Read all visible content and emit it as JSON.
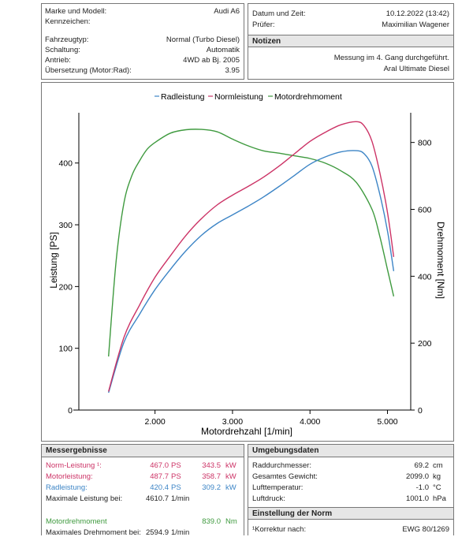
{
  "vehicle": {
    "rows": [
      {
        "label": "Marke und Modell:",
        "value": "Audi A6"
      },
      {
        "label": "Kennzeichen:",
        "value": ""
      },
      {
        "label": "Fahrzeugtyp:",
        "value": "Normal (Turbo Diesel)"
      },
      {
        "label": "Schaltung:",
        "value": "Automatik"
      },
      {
        "label": "Antrieb:",
        "value": "4WD ab Bj. 2005"
      },
      {
        "label": "Übersetzung (Motor:Rad):",
        "value": "3.95"
      }
    ]
  },
  "session": {
    "date_label": "Datum und Zeit:",
    "date_value": "10.12.2022 (13:42)",
    "tester_label": "Prüfer:",
    "tester_value": "Maximilian Wagener"
  },
  "notes": {
    "header": "Notizen",
    "line1": "Messung im 4. Gang durchgeführt.",
    "line2": "Aral Ultimate Diesel"
  },
  "colors": {
    "radleistung": "#3d85c6",
    "normleistung": "#cc3366",
    "motordrehmoment": "#3f9a3f"
  },
  "chart_data": {
    "type": "line",
    "legend_position": "top",
    "xlabel": "Motordrehzahl [1/min]",
    "ylabel": "Leistung [PS]",
    "y2label": "Drehmoment [Nm]",
    "xlim": [
      1200,
      5300
    ],
    "ylim": [
      0,
      475
    ],
    "y2lim": [
      0,
      877
    ],
    "xticks": [
      2000,
      3000,
      4000,
      5000
    ],
    "xtick_labels": [
      "2.000",
      "3.000",
      "4.000",
      "5.000"
    ],
    "yticks": [
      0,
      100,
      200,
      300,
      400
    ],
    "y2ticks": [
      0,
      200,
      400,
      600,
      800
    ],
    "grid": false,
    "series": [
      {
        "name": "Radleistung",
        "axis": "left",
        "x": [
          1400,
          1600,
          1800,
          2000,
          2200,
          2400,
          2600,
          2800,
          3000,
          3200,
          3400,
          3600,
          3800,
          4000,
          4200,
          4400,
          4600,
          4700,
          4800,
          4900,
          5000,
          5080
        ],
        "y": [
          28,
          110,
          155,
          195,
          228,
          258,
          283,
          302,
          316,
          330,
          345,
          362,
          380,
          398,
          410,
          418,
          420,
          415,
          395,
          350,
          290,
          225
        ]
      },
      {
        "name": "Normleistung",
        "axis": "left",
        "x": [
          1400,
          1600,
          1800,
          2000,
          2200,
          2400,
          2600,
          2800,
          3000,
          3200,
          3400,
          3600,
          3800,
          4000,
          4200,
          4400,
          4600,
          4700,
          4800,
          4900,
          5000,
          5080
        ],
        "y": [
          30,
          118,
          170,
          215,
          250,
          283,
          310,
          332,
          348,
          362,
          377,
          395,
          415,
          435,
          450,
          462,
          467,
          460,
          435,
          385,
          320,
          248
        ]
      },
      {
        "name": "Motordrehmoment",
        "axis": "right",
        "x": [
          1400,
          1500,
          1600,
          1700,
          1800,
          1900,
          2000,
          2200,
          2400,
          2600,
          2800,
          3000,
          3200,
          3400,
          3600,
          3800,
          4000,
          4200,
          4400,
          4600,
          4800,
          4900,
          5000,
          5080
        ],
        "y": [
          160,
          450,
          620,
          700,
          745,
          780,
          800,
          828,
          838,
          839,
          832,
          810,
          790,
          775,
          768,
          760,
          752,
          738,
          715,
          680,
          600,
          520,
          420,
          340
        ]
      }
    ]
  },
  "results": {
    "header": "Messergebnisse",
    "rows": [
      {
        "label": "Norm-Leistung ¹:",
        "v1": "467.0",
        "u1": "PS",
        "v2": "343.5",
        "u2": "kW",
        "color": "#cc3366"
      },
      {
        "label": "Motorleistung:",
        "v1": "487.7",
        "u1": "PS",
        "v2": "358.7",
        "u2": "kW",
        "color": "#cc3366"
      },
      {
        "label": "Radleistung:",
        "v1": "420.4",
        "u1": "PS",
        "v2": "309.2",
        "u2": "kW",
        "color": "#3d85c6"
      }
    ],
    "maxpower_label": "Maximale Leistung bei:",
    "maxpower_value": "4610.7",
    "maxpower_unit": "1/min",
    "torque_label": "Motordrehmoment",
    "torque_value": "839.0",
    "torque_unit": "Nm",
    "maxtorque_label": "Maximales Drehmoment bei:",
    "maxtorque_value": "2594.9",
    "maxtorque_unit": "1/min"
  },
  "environment": {
    "header": "Umgebungsdaten",
    "rows": [
      {
        "label": "Raddurchmesser:",
        "value": "69.2",
        "unit": "cm"
      },
      {
        "label": "Gesamtes Gewicht:",
        "value": "2099.0",
        "unit": "kg"
      },
      {
        "label": "Lufttemperatur:",
        "value": "-1.0",
        "unit": "°C"
      },
      {
        "label": "Luftdruck:",
        "value": "1001.0",
        "unit": "hPa"
      }
    ]
  },
  "norm": {
    "header": "Einstellung der Norm",
    "label": "¹Korrektur nach:",
    "value": "EWG 80/1269"
  }
}
